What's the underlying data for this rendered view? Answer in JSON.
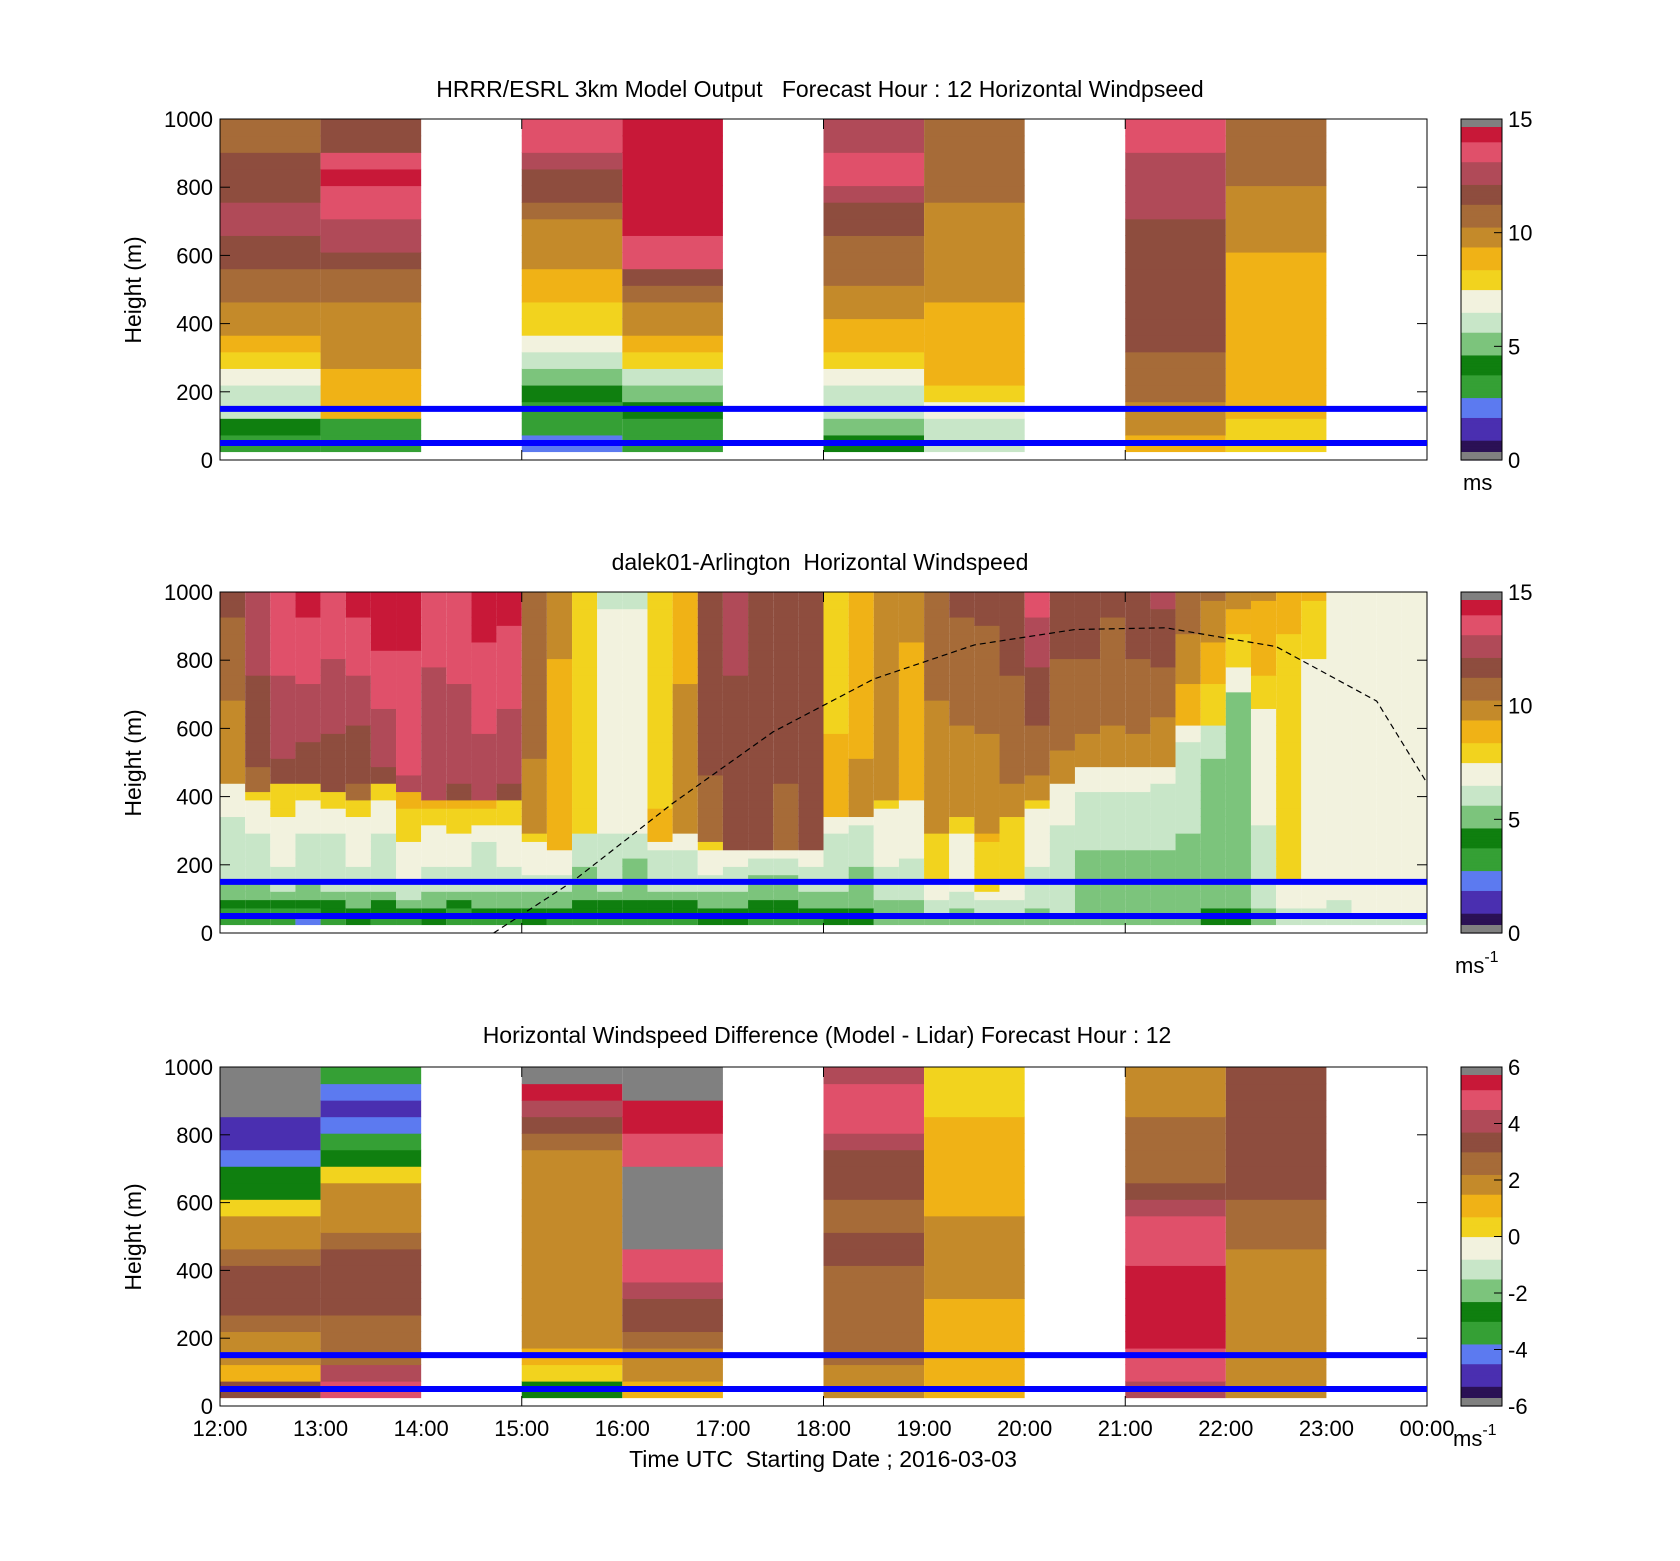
{
  "chart_data": [
    {
      "type": "heatmap",
      "title": "HRRR/ESRL 3km Model Output   Forecast Hour : 12 Horizontal Windpseed",
      "ylabel": "Height (m)",
      "xlabel": "",
      "ylim": [
        0,
        1000
      ],
      "yticks": [
        "0",
        "200",
        "400",
        "600",
        "800",
        "1000"
      ],
      "colorbar": {
        "min": 0,
        "max": 15,
        "ticks": [
          "0",
          "5",
          "10",
          "15"
        ],
        "unit": "ms"
      },
      "reference_lines_m": [
        50,
        150
      ],
      "columns": [
        {
          "t0": 0,
          "t1": 1,
          "bottom": 25,
          "top": 1000,
          "values": [
            3.5,
            4.5,
            6,
            6.5,
            6.8,
            7.5,
            9,
            9.5,
            10,
            10.5,
            11,
            11.5,
            12,
            12.5,
            13,
            12,
            11.5,
            11.5,
            11,
            11
          ]
        },
        {
          "t0": 1,
          "t1": 2,
          "bottom": 25,
          "top": 1000,
          "values": [
            3.5,
            3.5,
            9,
            9,
            9,
            9.5,
            9.5,
            10,
            10,
            10.5,
            11,
            12,
            12.5,
            13,
            13.5,
            14,
            14.5,
            14,
            12,
            12
          ]
        },
        {
          "t0": 3,
          "t1": 4,
          "bottom": 25,
          "top": 1000,
          "values": [
            2,
            3.5,
            3.5,
            4,
            5,
            6,
            7,
            7.5,
            8,
            8.5,
            9,
            9.5,
            10,
            10,
            10.5,
            12,
            12,
            13,
            13.5,
            14
          ]
        },
        {
          "t0": 4,
          "t1": 5,
          "bottom": 25,
          "top": 1000,
          "values": [
            3,
            3.5,
            4.5,
            5.5,
            6,
            7.5,
            9,
            9.5,
            10,
            11,
            12,
            13.5,
            14,
            14.5,
            15.5,
            15.5,
            15.5,
            15.5,
            15.5,
            15.5
          ]
        },
        {
          "t0": 6,
          "t1": 7,
          "bottom": 25,
          "top": 1000,
          "values": [
            4.5,
            5.5,
            6,
            6.5,
            7,
            7.8,
            9,
            9,
            9.5,
            10,
            10.5,
            10.5,
            11,
            11.5,
            12,
            13,
            13.5,
            14,
            13,
            13
          ]
        },
        {
          "t0": 7,
          "t1": 8,
          "bottom": 25,
          "top": 1000,
          "values": [
            6,
            6.5,
            7.2,
            8,
            8.5,
            9,
            9,
            9,
            9,
            9.5,
            9.5,
            9.5,
            9.5,
            10,
            10,
            10.5,
            10.5,
            10.5,
            11,
            11
          ]
        },
        {
          "t0": 9,
          "t1": 10,
          "bottom": 25,
          "top": 1000,
          "values": [
            9,
            9.5,
            10,
            10.5,
            11,
            11,
            11.5,
            11.5,
            12,
            12,
            12,
            12,
            12,
            12,
            12.5,
            12.5,
            13,
            13,
            13.5,
            13.5
          ]
        },
        {
          "t0": 10,
          "t1": 11,
          "bottom": 25,
          "top": 1000,
          "values": [
            7.5,
            8,
            8.5,
            8.5,
            9,
            9,
            9,
            9,
            9,
            9,
            9,
            9,
            9.5,
            9.5,
            10,
            10,
            10.5,
            10.5,
            11,
            11
          ]
        }
      ]
    },
    {
      "type": "heatmap",
      "title": "dalek01-Arlington  Horizontal Windspeed",
      "ylabel": "Height (m)",
      "xlabel": "",
      "ylim": [
        0,
        1000
      ],
      "yticks": [
        "0",
        "200",
        "400",
        "600",
        "800",
        "1000"
      ],
      "colorbar": {
        "min": 0,
        "max": 15,
        "ticks": [
          "0",
          "5",
          "10",
          "15"
        ],
        "unit": "ms",
        "unit_sup": "-1"
      },
      "reference_lines_m": [
        50,
        150
      ],
      "curve": {
        "style": "dashed",
        "x_hours": [
          2.72,
          3.5,
          4.5,
          5.5,
          6.5,
          7.5,
          8.5,
          9.4,
          10.5,
          11.5,
          12
        ],
        "y_m": [
          0,
          150,
          380,
          590,
          745,
          845,
          890,
          895,
          840,
          680,
          440
        ]
      },
      "columns_per_hour": 4,
      "profiles": [
        {
          "surface": 2.5,
          "mid": 6.0,
          "upper": 9.5,
          "top": 11.5,
          "transition_m": 450
        },
        {
          "surface": 2.8,
          "mid": 6.0,
          "upper": 11.0,
          "top": 13.0,
          "transition_m": 420
        },
        {
          "surface": 2.5,
          "mid": 6.5,
          "upper": 12.0,
          "top": 14.0,
          "transition_m": 450
        },
        {
          "surface": 2.0,
          "mid": 6.0,
          "upper": 11.5,
          "top": 14.5,
          "transition_m": 430
        },
        {
          "surface": 3.0,
          "mid": 6.0,
          "upper": 11.5,
          "top": 14.0,
          "transition_m": 420
        },
        {
          "surface": 3.5,
          "mid": 6.5,
          "upper": 11.0,
          "top": 14.5,
          "transition_m": 400
        },
        {
          "surface": 3.0,
          "mid": 6.0,
          "upper": 12.0,
          "top": 15.0,
          "transition_m": 450
        },
        {
          "surface": 3.0,
          "mid": 7.0,
          "upper": 13.0,
          "top": 14.5,
          "transition_m": 420
        },
        {
          "surface": 3.5,
          "mid": 6.5,
          "upper": 12.5,
          "top": 13.5,
          "transition_m": 400
        },
        {
          "surface": 2.5,
          "mid": 6.5,
          "upper": 12.0,
          "top": 14.0,
          "transition_m": 380
        },
        {
          "surface": 3.5,
          "mid": 6.0,
          "upper": 12.5,
          "top": 14.5,
          "transition_m": 380
        },
        {
          "surface": 3.0,
          "mid": 6.5,
          "upper": 12.0,
          "top": 14.5,
          "transition_m": 400
        },
        {
          "surface": 3.5,
          "mid": 6.5,
          "upper": 10.0,
          "top": 11.0,
          "transition_m": 300
        },
        {
          "surface": 3.0,
          "mid": 6.5,
          "upper": 9.0,
          "top": 9.5,
          "transition_m": 250
        },
        {
          "surface": 3.5,
          "mid": 5.5,
          "upper": 8.0,
          "top": 7.5,
          "transition_m": 300
        },
        {
          "surface": 3.0,
          "mid": 6.0,
          "upper": 7.5,
          "top": 6.5,
          "transition_m": 300
        },
        {
          "surface": 3.5,
          "mid": 5.5,
          "upper": 7.5,
          "top": 6.5,
          "transition_m": 300
        },
        {
          "surface": 3.0,
          "mid": 6.0,
          "upper": 8.5,
          "top": 8.0,
          "transition_m": 280
        },
        {
          "surface": 3.0,
          "mid": 6.0,
          "upper": 10.0,
          "top": 9.0,
          "transition_m": 300
        },
        {
          "surface": 3.5,
          "mid": 6.5,
          "upper": 11.0,
          "top": 12.0,
          "transition_m": 280
        },
        {
          "surface": 4.0,
          "mid": 6.0,
          "upper": 11.5,
          "top": 12.5,
          "transition_m": 250
        },
        {
          "surface": 3.5,
          "mid": 5.5,
          "upper": 11.5,
          "top": 12.0,
          "transition_m": 250
        },
        {
          "surface": 3.5,
          "mid": 5.5,
          "upper": 11.0,
          "top": 12.0,
          "transition_m": 250
        },
        {
          "surface": 3.5,
          "mid": 6.0,
          "upper": 11.5,
          "top": 12.0,
          "transition_m": 250
        },
        {
          "surface": 4.0,
          "mid": 6.0,
          "upper": 9.0,
          "top": 7.5,
          "transition_m": 350
        },
        {
          "surface": 4.0,
          "mid": 5.5,
          "upper": 9.5,
          "top": 9.0,
          "transition_m": 350
        },
        {
          "surface": 4.5,
          "mid": 6.5,
          "upper": 9.5,
          "top": 9.5,
          "transition_m": 400
        },
        {
          "surface": 4.5,
          "mid": 6.5,
          "upper": 9.0,
          "top": 9.5,
          "transition_m": 400
        },
        {
          "surface": 5.0,
          "mid": 7.5,
          "upper": 9.5,
          "top": 11.0,
          "transition_m": 300
        },
        {
          "surface": 5.0,
          "mid": 7.0,
          "upper": 9.5,
          "top": 11.5,
          "transition_m": 350
        },
        {
          "surface": 5.0,
          "mid": 8.0,
          "upper": 9.5,
          "top": 11.5,
          "transition_m": 300
        },
        {
          "surface": 5.0,
          "mid": 7.5,
          "upper": 10.0,
          "top": 12.0,
          "transition_m": 350
        },
        {
          "surface": 5.0,
          "mid": 6.5,
          "upper": 10.0,
          "top": 13.5,
          "transition_m": 400
        },
        {
          "surface": 5.5,
          "mid": 6.0,
          "upper": 10.0,
          "top": 12.0,
          "transition_m": 450
        },
        {
          "surface": 5.0,
          "mid": 5.5,
          "upper": 10.0,
          "top": 12.0,
          "transition_m": 500
        },
        {
          "surface": 5.0,
          "mid": 5.5,
          "upper": 10.0,
          "top": 11.5,
          "transition_m": 500
        },
        {
          "surface": 5.0,
          "mid": 5.5,
          "upper": 10.0,
          "top": 12.0,
          "transition_m": 500
        },
        {
          "surface": 5.0,
          "mid": 5.5,
          "upper": 9.5,
          "top": 12.5,
          "transition_m": 500
        },
        {
          "surface": 5.0,
          "mid": 5.5,
          "upper": 8.5,
          "top": 11.0,
          "transition_m": 600
        },
        {
          "surface": 4.5,
          "mid": 5.0,
          "upper": 7.5,
          "top": 10.5,
          "transition_m": 600
        },
        {
          "surface": 4.5,
          "mid": 5.0,
          "upper": 6.5,
          "top": 10.0,
          "transition_m": 700
        },
        {
          "surface": 5.0,
          "mid": 6.5,
          "upper": 8.0,
          "top": 9.5,
          "transition_m": 650
        },
        {
          "surface": 6.0,
          "mid": 7.5,
          "upper": 7.5,
          "top": 9.0,
          "transition_m": 700
        },
        {
          "surface": 6.0,
          "mid": 7.5,
          "upper": 7.0,
          "top": 8.5,
          "transition_m": 700
        },
        {
          "surface": 6.0,
          "mid": 7.0,
          "upper": 7.0,
          "top": 7.5,
          "transition_m": 700
        },
        {
          "surface": 6.5,
          "mid": 7.0,
          "upper": 7.0,
          "top": 7.5,
          "transition_m": 700
        },
        {
          "surface": 6.5,
          "mid": 7.0,
          "upper": 7.0,
          "top": 7.5,
          "transition_m": 700
        },
        {
          "surface": 6.5,
          "mid": 7.0,
          "upper": 7.0,
          "top": 7.0,
          "transition_m": 700
        }
      ]
    },
    {
      "type": "heatmap",
      "title": "Horizontal Windspeed Difference (Model - Lidar) Forecast Hour : 12",
      "ylabel": "Height (m)",
      "xlabel": "Time UTC  Starting Date ; 2016-03-03",
      "ylim": [
        0,
        1000
      ],
      "yticks": [
        "0",
        "200",
        "400",
        "600",
        "800",
        "1000"
      ],
      "xticks": [
        "12:00",
        "13:00",
        "14:00",
        "15:00",
        "16:00",
        "17:00",
        "18:00",
        "19:00",
        "20:00",
        "21:00",
        "22:00",
        "23:00",
        "00:00"
      ],
      "colorbar": {
        "min": -6,
        "max": 6,
        "ticks": [
          "-6",
          "-4",
          "-2",
          "0",
          "2",
          "4",
          "6"
        ],
        "unit": "ms",
        "unit_sup": "-1"
      },
      "reference_lines_m": [
        50,
        150
      ],
      "columns": [
        {
          "t0": 0,
          "t1": 1,
          "bottom": 25,
          "top": 1000,
          "values": [
            3,
            1,
            1.5,
            2,
            2.5,
            3,
            3,
            3,
            2.5,
            2,
            1.5,
            0.5,
            -2.5,
            -3,
            -4.5,
            -5,
            -5,
            99,
            99,
            99
          ]
        },
        {
          "t0": 1,
          "t1": 2,
          "bottom": 25,
          "top": 1000,
          "values": [
            5,
            4,
            2.5,
            2.5,
            2.5,
            3,
            3,
            3,
            3.5,
            2.5,
            2,
            1.5,
            1.5,
            0,
            -2.5,
            -3.5,
            -4.5,
            -5,
            -4,
            -3.5
          ]
        },
        {
          "t0": 3,
          "t1": 4,
          "bottom": 25,
          "top": 1000,
          "values": [
            -2.5,
            0.5,
            1,
            1.5,
            1.5,
            1.5,
            1.5,
            1.5,
            1.5,
            1.5,
            1.5,
            1.5,
            2,
            2,
            2,
            2.5,
            3,
            4,
            5.5,
            99
          ]
        },
        {
          "t0": 4,
          "t1": 5,
          "bottom": 25,
          "top": 1000,
          "values": [
            1,
            1.5,
            2,
            2.5,
            3,
            3.5,
            4,
            4.5,
            5,
            99,
            99,
            99,
            99,
            99,
            5,
            5,
            5.5,
            5.5,
            99,
            99
          ]
        },
        {
          "t0": 6,
          "t1": 7,
          "bottom": 25,
          "top": 1000,
          "values": [
            2,
            2,
            2.5,
            2.5,
            2.5,
            2.5,
            2.5,
            2.5,
            3,
            3,
            2.5,
            2.5,
            3,
            3,
            3.5,
            4,
            4.5,
            4.5,
            5,
            4
          ]
        },
        {
          "t0": 7,
          "t1": 8,
          "bottom": 25,
          "top": 1000,
          "values": [
            1,
            1,
            1,
            1.2,
            1.2,
            1.2,
            1.5,
            1.5,
            1.5,
            1.5,
            1.5,
            1.2,
            1.2,
            1,
            1,
            1,
            0.8,
            0.5,
            0.4,
            0.3
          ]
        },
        {
          "t0": 9,
          "t1": 10,
          "bottom": 25,
          "top": 1000,
          "values": [
            4,
            4.5,
            5,
            5.5,
            6,
            6,
            6,
            5.5,
            5,
            4.5,
            4.5,
            4,
            3,
            2.5,
            2.5,
            2.5,
            2.5,
            2,
            2,
            2
          ]
        },
        {
          "t0": 10,
          "t1": 11,
          "bottom": 25,
          "top": 1000,
          "values": [
            1.5,
            1.5,
            1.5,
            1.5,
            1.5,
            2,
            2,
            2,
            2,
            2.5,
            2.5,
            2.5,
            3,
            3,
            3,
            3.5,
            3.5,
            3.5,
            3,
            3
          ]
        }
      ]
    }
  ],
  "colormap": [
    "#2b1155",
    "#4a2fb0",
    "#5c7af0",
    "#35a035",
    "#0f7f0f",
    "#7cc47c",
    "#c8e6c8",
    "#f2f2de",
    "#f2d31e",
    "#f0b216",
    "#c48a2a",
    "#a66b38",
    "#8e4d3e",
    "#b04a58",
    "#e0506a",
    "#c81838"
  ],
  "colors": {
    "reference_line": "#0000ff",
    "missing": "#808080",
    "text": "#000000"
  }
}
